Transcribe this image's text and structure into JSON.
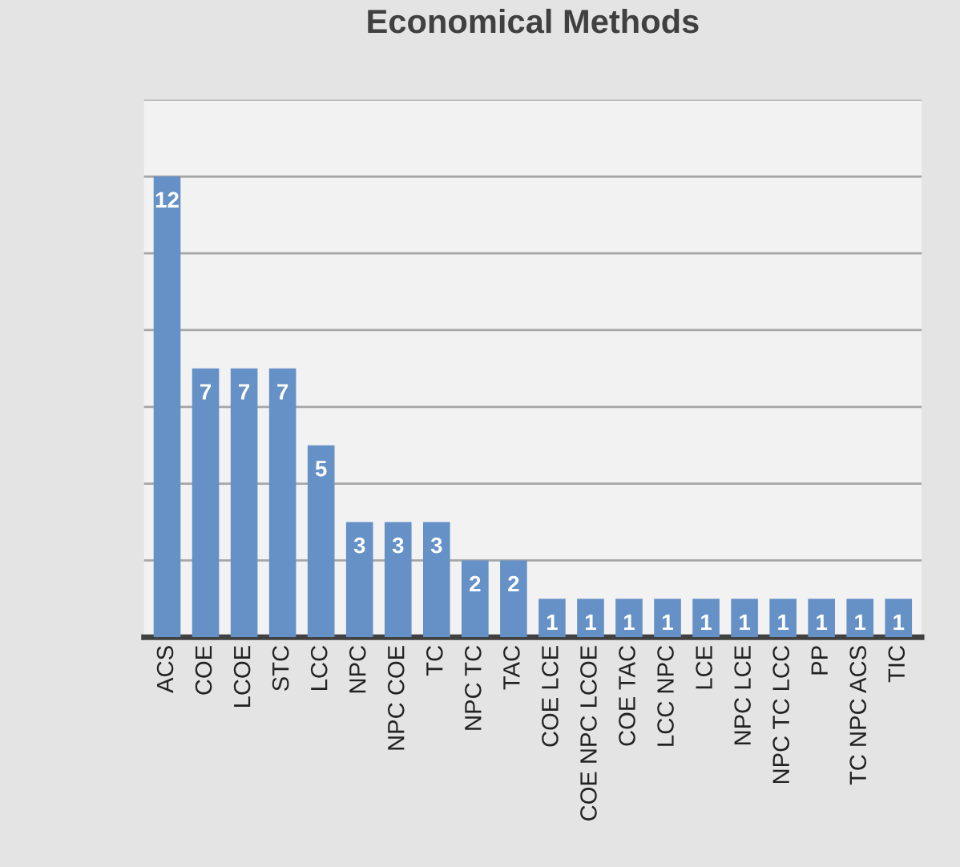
{
  "chart_data": {
    "type": "bar",
    "title": "Economical Methods",
    "categories": [
      "ACS",
      "COE",
      "LCOE",
      "STC",
      "LCC",
      "NPC",
      "NPC COE",
      "TC",
      "NPC TC",
      "TAC",
      "COE LCE",
      "COE NPC LCOE",
      "COE TAC",
      "LCC NPC",
      "LCE",
      "NPC LCE",
      "NPC TC LCC",
      "PP",
      "TC NPC ACS",
      "TIC"
    ],
    "values": [
      12,
      7,
      7,
      7,
      5,
      3,
      3,
      3,
      2,
      2,
      1,
      1,
      1,
      1,
      1,
      1,
      1,
      1,
      1,
      1
    ],
    "color": "#6591c7",
    "ylim": [
      0,
      14
    ],
    "yticks": [
      {
        "value": 0,
        "label": null
      },
      {
        "value": 2,
        "label": null
      },
      {
        "value": 4,
        "label": null
      },
      {
        "value": 6,
        "label": null
      },
      {
        "value": 8,
        "label": null
      },
      {
        "value": 10,
        "label": null
      },
      {
        "value": 12,
        "label": null
      },
      {
        "value": 14,
        "label": null
      }
    ],
    "tick_labels": "x",
    "grid": "y",
    "data_labels": true
  }
}
